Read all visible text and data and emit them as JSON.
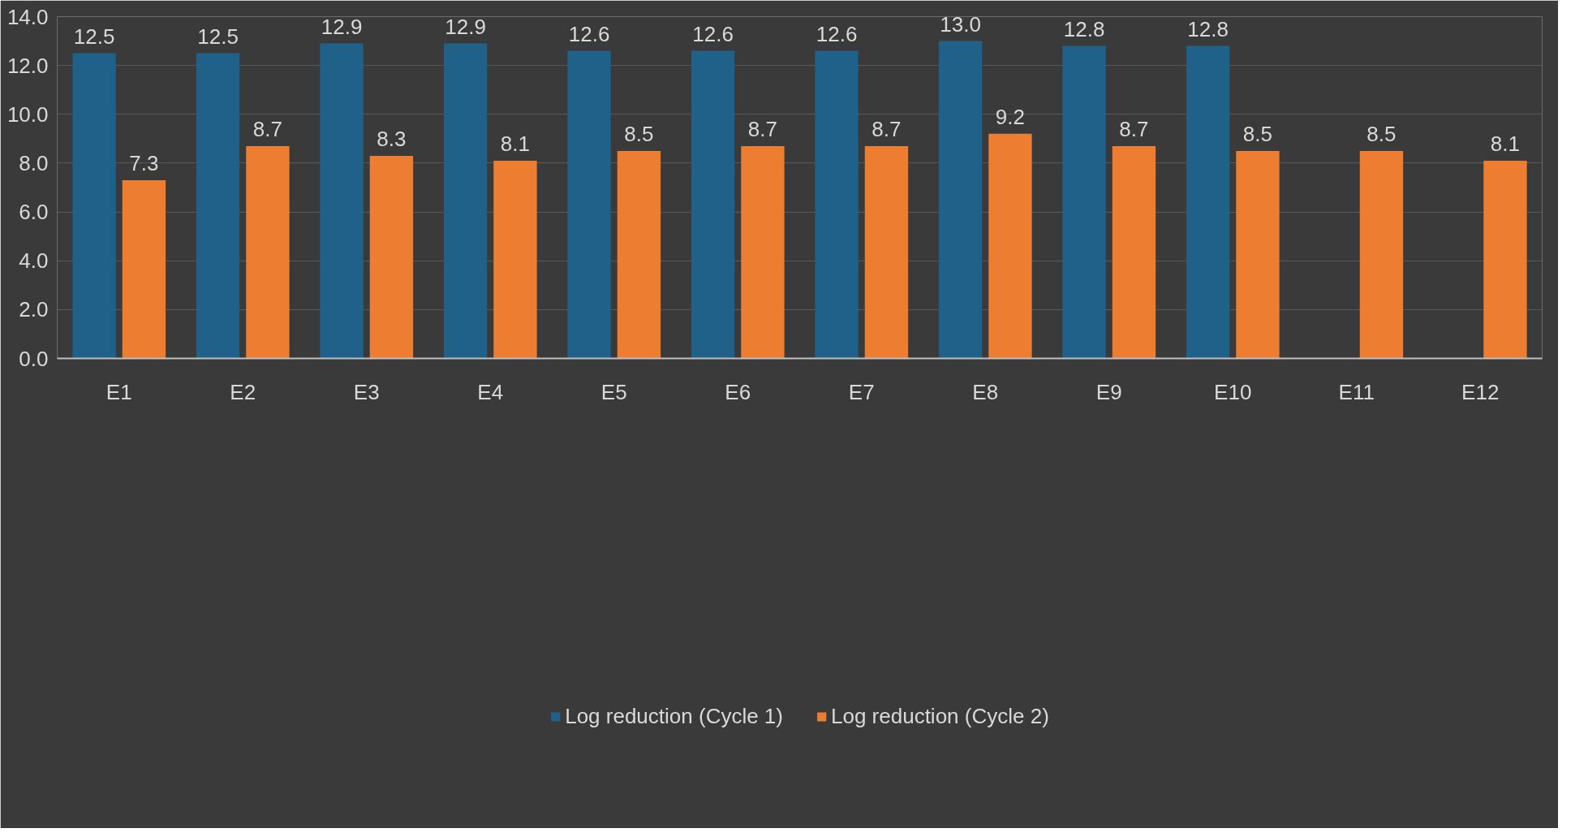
{
  "chart_data": {
    "type": "bar",
    "categories": [
      "E1",
      "E2",
      "E3",
      "E4",
      "E5",
      "E6",
      "E7",
      "E8",
      "E9",
      "E10",
      "E11",
      "E12"
    ],
    "series": [
      {
        "name": "Log reduction (Cycle 1)",
        "color": "#1f6189",
        "values": [
          12.5,
          12.5,
          12.9,
          12.9,
          12.6,
          12.6,
          12.6,
          13.0,
          12.8,
          12.8,
          null,
          null
        ],
        "value_labels": [
          "12.5",
          "12.5",
          "12.9",
          "12.9",
          "12.6",
          "12.6",
          "12.6",
          "13.0",
          "12.8",
          "12.8",
          null,
          null
        ]
      },
      {
        "name": "Log reduction (Cycle 2)",
        "color": "#ed7d31",
        "values": [
          7.3,
          8.7,
          8.3,
          8.1,
          8.5,
          8.7,
          8.7,
          9.2,
          8.7,
          8.5,
          8.5,
          8.1
        ],
        "value_labels": [
          "7.3",
          "8.7",
          "8.3",
          "8.1",
          "8.5",
          "8.7",
          "8.7",
          "9.2",
          "8.7",
          "8.5",
          "8.5",
          "8.1"
        ]
      }
    ],
    "ylim": [
      0,
      14
    ],
    "yticks": [
      {
        "value": 0,
        "label": "0.0"
      },
      {
        "value": 2,
        "label": "2.0"
      },
      {
        "value": 4,
        "label": "4.0"
      },
      {
        "value": 6,
        "label": "6.0"
      },
      {
        "value": 8,
        "label": "8.0"
      },
      {
        "value": 10,
        "label": "10.0"
      },
      {
        "value": 12,
        "label": "12.0"
      },
      {
        "value": 14,
        "label": "14.0"
      }
    ],
    "grid": "y",
    "legend": "bottom"
  }
}
